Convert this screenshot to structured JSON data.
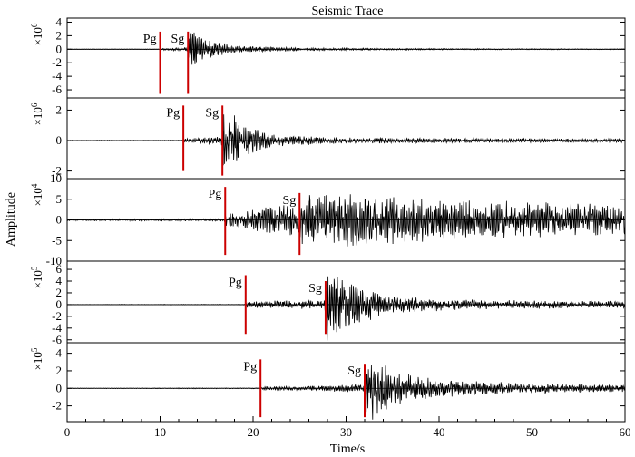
{
  "chart_data": {
    "type": "line",
    "title": "Seismic Trace",
    "xlabel": "Time/s",
    "ylabel": "Amplitude",
    "xlim": [
      0,
      60
    ],
    "xticks": [
      "0",
      "10",
      "20",
      "30",
      "40",
      "50",
      "60"
    ],
    "colors": {
      "trace": "#000000",
      "pick": "#cc0000"
    },
    "panels": [
      {
        "scale_base": "×10",
        "scale_exp": "6",
        "ylim": [
          -7.2,
          4.6
        ],
        "yticks": [
          4,
          2,
          0,
          -2,
          -4,
          -6
        ],
        "pg_time": 10.0,
        "sg_time": 13.0,
        "pg_marker": [
          -6.6,
          2.6
        ],
        "sg_marker": [
          -6.6,
          2.6
        ],
        "pg_label": "Pg",
        "sg_label": "Sg",
        "envelope": [
          [
            0,
            0.03
          ],
          [
            9.9,
            0.04
          ],
          [
            10.1,
            0.15
          ],
          [
            12.9,
            0.25
          ],
          [
            13.1,
            3.5
          ],
          [
            15,
            1.5
          ],
          [
            18,
            0.6
          ],
          [
            25,
            0.25
          ],
          [
            35,
            0.12
          ],
          [
            60,
            0.05
          ]
        ]
      },
      {
        "scale_base": "×10",
        "scale_exp": "6",
        "ylim": [
          -2.5,
          2.8
        ],
        "yticks": [
          2,
          0,
          -2
        ],
        "pg_time": 12.5,
        "sg_time": 16.7,
        "pg_marker": [
          -2.0,
          2.3
        ],
        "sg_marker": [
          -2.3,
          2.3
        ],
        "pg_label": "Pg",
        "sg_label": "Sg",
        "envelope": [
          [
            0,
            0.02
          ],
          [
            12.4,
            0.03
          ],
          [
            12.6,
            0.15
          ],
          [
            16.6,
            0.3
          ],
          [
            16.8,
            2.3
          ],
          [
            19,
            1.2
          ],
          [
            22,
            0.4
          ],
          [
            30,
            0.2
          ],
          [
            45,
            0.15
          ],
          [
            60,
            0.12
          ]
        ]
      },
      {
        "scale_base": "×10",
        "scale_exp": "4",
        "ylim": [
          -10,
          10
        ],
        "yticks": [
          10,
          5,
          0,
          -5,
          -10
        ],
        "pg_time": 17.0,
        "sg_time": 25.0,
        "pg_marker": [
          -8.5,
          8.0
        ],
        "sg_marker": [
          -8.5,
          6.5
        ],
        "pg_label": "Pg",
        "sg_label": "Sg",
        "envelope": [
          [
            0,
            0.2
          ],
          [
            16.9,
            0.3
          ],
          [
            17.1,
            1.5
          ],
          [
            20,
            3.0
          ],
          [
            24.9,
            4.0
          ],
          [
            25.1,
            6.5
          ],
          [
            30,
            7.0
          ],
          [
            40,
            5.0
          ],
          [
            50,
            4.5
          ],
          [
            60,
            4.0
          ]
        ]
      },
      {
        "scale_base": "×10",
        "scale_exp": "5",
        "ylim": [
          -6.5,
          7.4
        ],
        "yticks": [
          6,
          4,
          2,
          0,
          -2,
          -4,
          -6
        ],
        "pg_time": 19.2,
        "sg_time": 27.8,
        "pg_marker": [
          -5.0,
          5.0
        ],
        "sg_marker": [
          -5.0,
          4.0
        ],
        "pg_label": "Pg",
        "sg_label": "Sg",
        "envelope": [
          [
            0,
            0.03
          ],
          [
            19.1,
            0.05
          ],
          [
            19.3,
            0.6
          ],
          [
            27.7,
            0.8
          ],
          [
            27.9,
            6.5
          ],
          [
            31,
            3.5
          ],
          [
            35,
            1.5
          ],
          [
            45,
            0.8
          ],
          [
            60,
            0.6
          ]
        ]
      },
      {
        "scale_base": "×10",
        "scale_exp": "5",
        "ylim": [
          -3.8,
          5.2
        ],
        "yticks": [
          4,
          2,
          0,
          -2
        ],
        "pg_time": 20.8,
        "sg_time": 32.0,
        "pg_marker": [
          -3.3,
          3.3
        ],
        "sg_marker": [
          -3.3,
          2.8
        ],
        "pg_label": "Pg",
        "sg_label": "Sg",
        "envelope": [
          [
            0,
            0.03
          ],
          [
            20.7,
            0.05
          ],
          [
            20.9,
            0.2
          ],
          [
            28,
            0.35
          ],
          [
            31.9,
            0.5
          ],
          [
            32.1,
            4.5
          ],
          [
            35,
            2.0
          ],
          [
            40,
            1.0
          ],
          [
            50,
            0.6
          ],
          [
            60,
            0.4
          ]
        ]
      }
    ]
  }
}
